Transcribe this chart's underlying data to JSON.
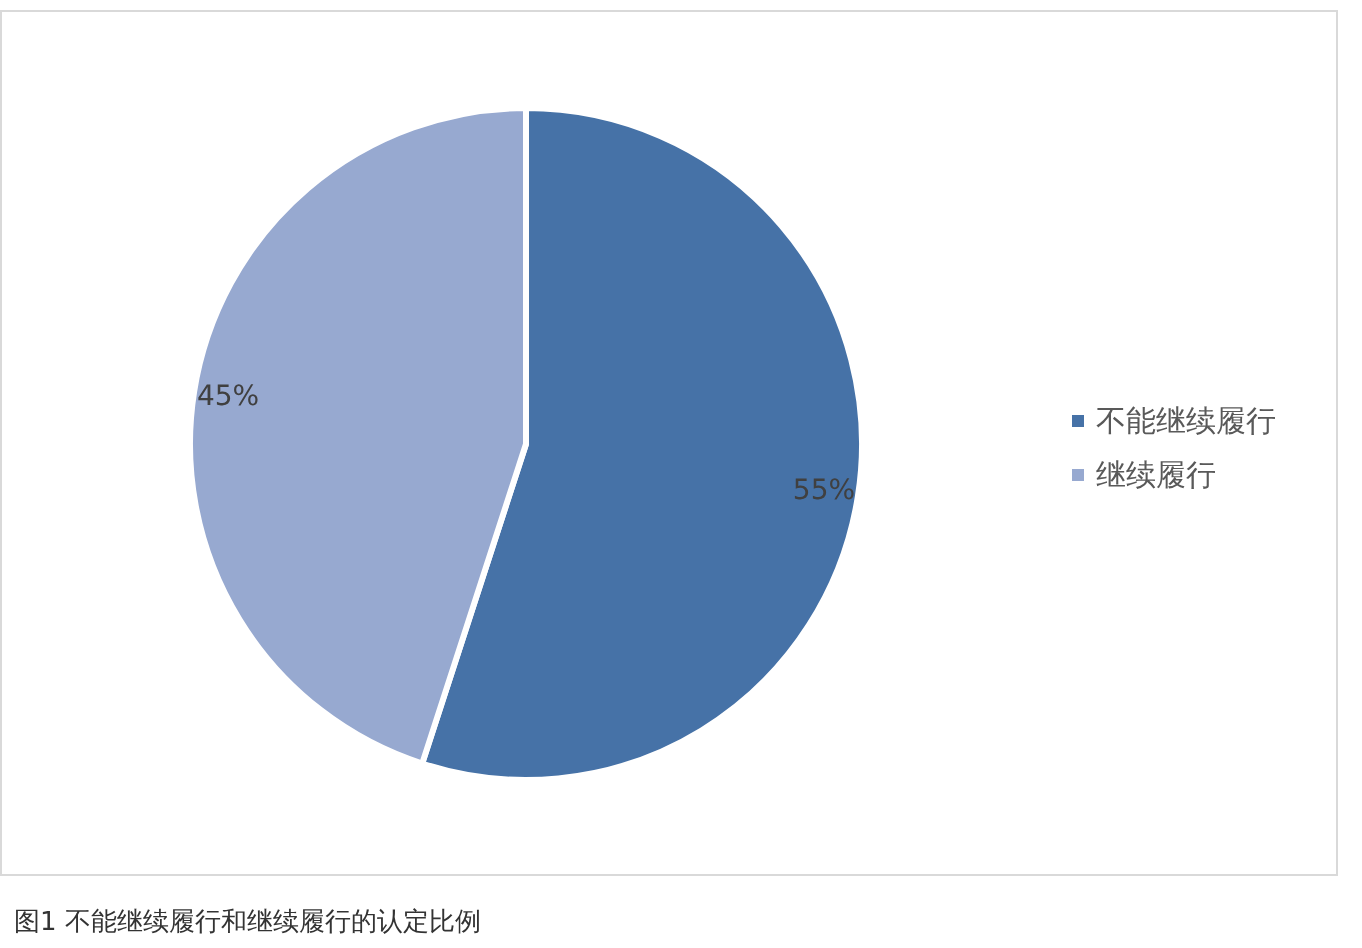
{
  "chart_data": {
    "type": "pie",
    "categories": [
      "不能继续履行",
      "继续履行"
    ],
    "values": [
      55,
      45
    ],
    "colors": [
      "#4672a7",
      "#97a9d0"
    ],
    "value_labels": [
      "55%",
      "45%"
    ],
    "legend": "right",
    "annotations": [
      "图1 不能继续履行和继续履行的认定比例"
    ]
  }
}
